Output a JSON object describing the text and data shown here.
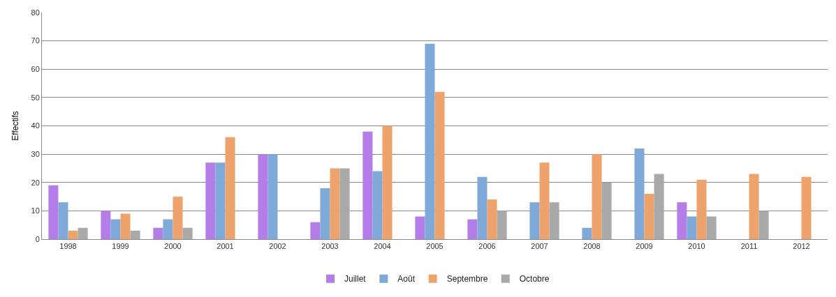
{
  "chart_data": {
    "type": "bar",
    "ylabel": "Effectifs",
    "categories": [
      "1998",
      "1999",
      "2000",
      "2001",
      "2002",
      "2003",
      "2004",
      "2005",
      "2006",
      "2007",
      "2008",
      "2009",
      "2010",
      "2011",
      "2012"
    ],
    "series": [
      {
        "name": "Juillet",
        "color": "#b57de8",
        "values": [
          19,
          10,
          4,
          27,
          30,
          6,
          38,
          8,
          7,
          null,
          null,
          null,
          13,
          null,
          null
        ]
      },
      {
        "name": "Août",
        "color": "#7fa9d8",
        "values": [
          13,
          7,
          7,
          27,
          30,
          18,
          24,
          69,
          22,
          13,
          4,
          32,
          8,
          null,
          null
        ]
      },
      {
        "name": "Septembre",
        "color": "#eea26c",
        "values": [
          3,
          9,
          15,
          36,
          null,
          25,
          40,
          52,
          14,
          27,
          30,
          16,
          21,
          23,
          22
        ]
      },
      {
        "name": "Octobre",
        "color": "#a9a9a9",
        "values": [
          4,
          3,
          4,
          null,
          null,
          25,
          null,
          null,
          10,
          13,
          20,
          23,
          8,
          10,
          null
        ]
      }
    ],
    "ylim": [
      0,
      80
    ],
    "yticks": [
      0,
      10,
      20,
      30,
      40,
      50,
      60,
      70,
      80
    ],
    "grid": "y",
    "legend": "bottom"
  }
}
